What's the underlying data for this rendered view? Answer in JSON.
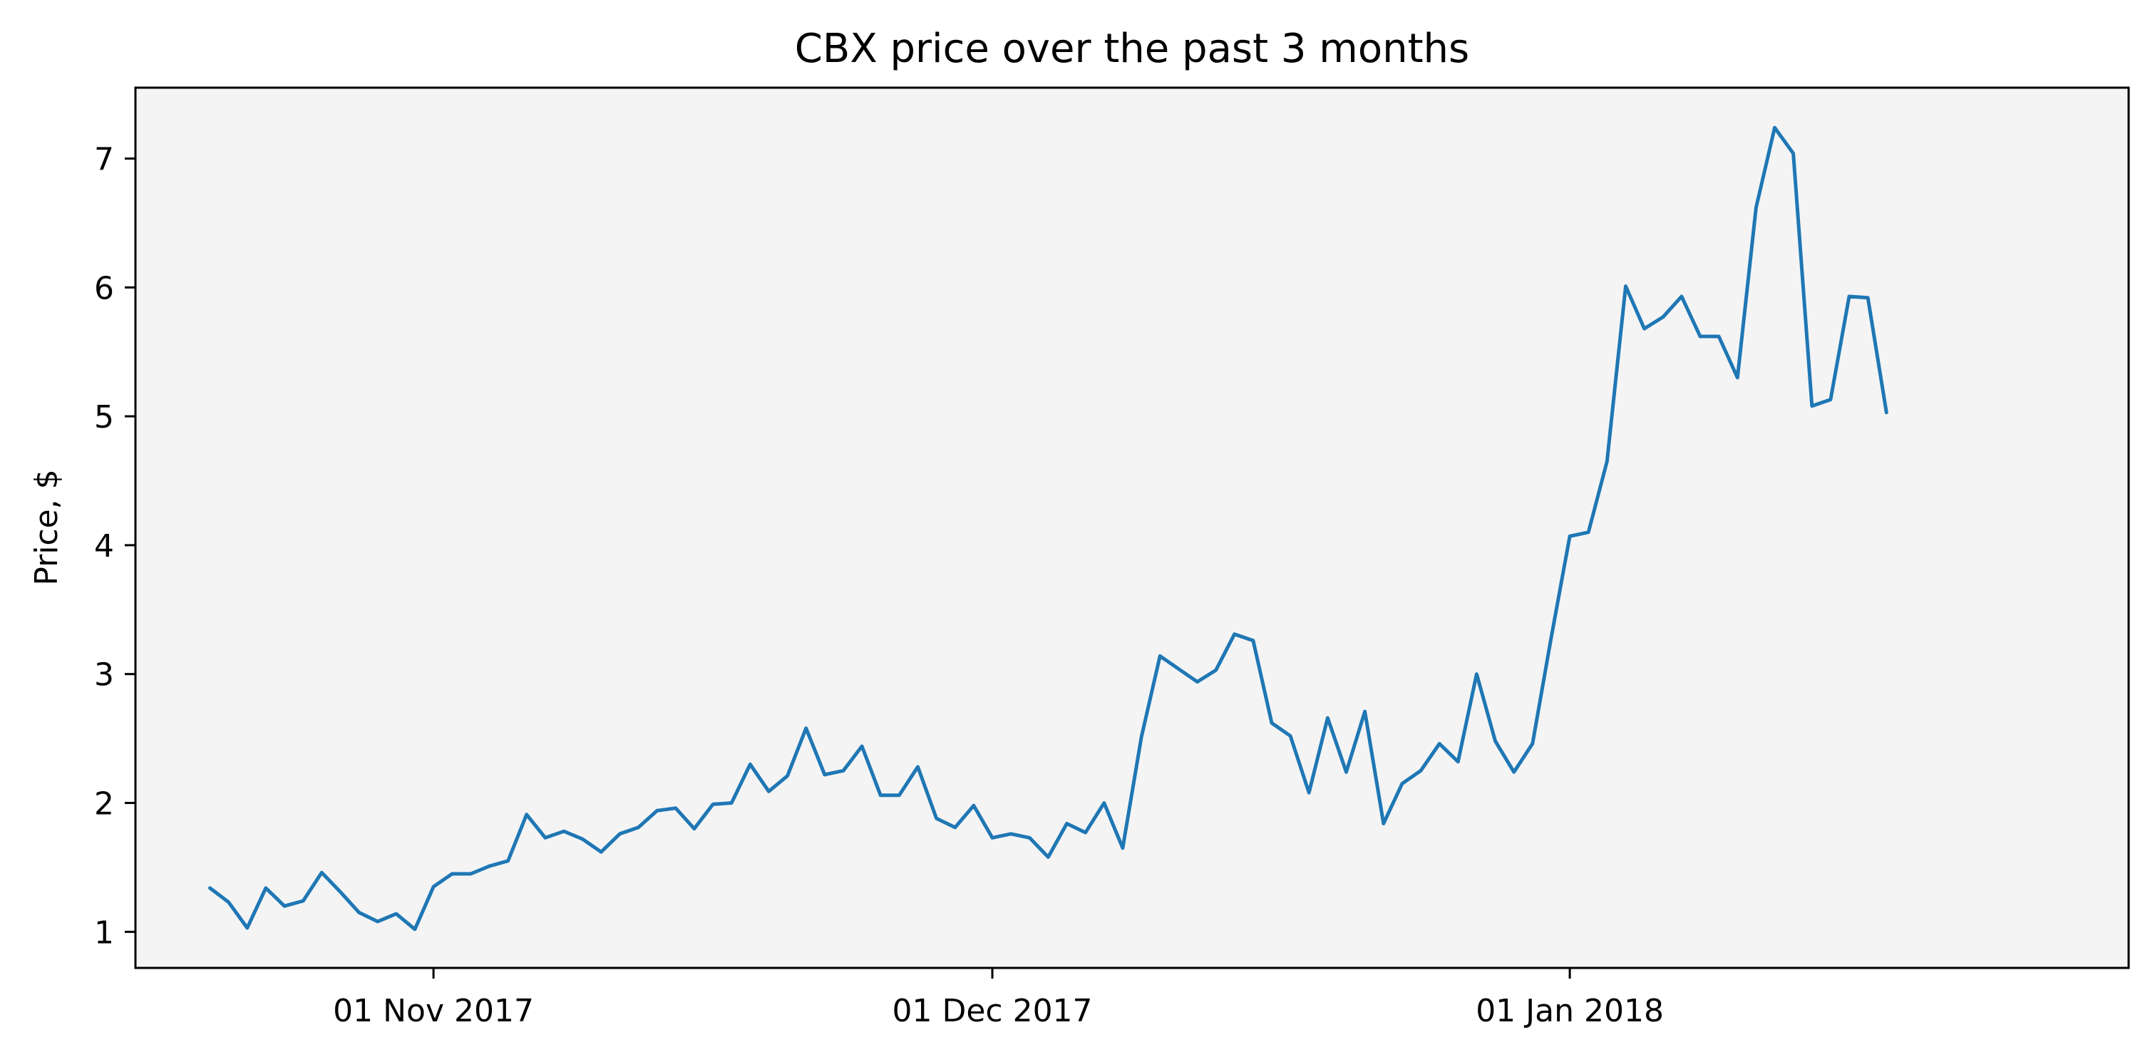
{
  "chart_data": {
    "type": "line",
    "title": "CBX price over the past 3 months",
    "xlabel": "",
    "ylabel": "Price, $",
    "ylim": [
      0.72,
      7.55
    ],
    "xlim": [
      "2017-10-16",
      "2018-01-31"
    ],
    "grid": false,
    "background_color": "#f4f4f5",
    "y_ticks": [
      1,
      2,
      3,
      4,
      5,
      6,
      7
    ],
    "x_ticks": [
      {
        "date": "2017-11-01",
        "label": "01 Nov 2017"
      },
      {
        "date": "2017-12-01",
        "label": "01 Dec 2017"
      },
      {
        "date": "2018-01-01",
        "label": "01 Jan 2018"
      }
    ],
    "series": [
      {
        "color": "#1f77b4",
        "start_date": "2017-10-20",
        "interval_days": 1,
        "values": [
          1.34,
          1.23,
          1.03,
          1.34,
          1.2,
          1.24,
          1.46,
          1.31,
          1.15,
          1.08,
          1.14,
          1.02,
          1.35,
          1.45,
          1.45,
          1.51,
          1.55,
          1.91,
          1.73,
          1.78,
          1.72,
          1.62,
          1.76,
          1.81,
          1.94,
          1.96,
          1.8,
          1.99,
          2.0,
          2.3,
          2.09,
          2.21,
          2.58,
          2.22,
          2.25,
          2.44,
          2.06,
          2.06,
          2.28,
          1.88,
          1.81,
          1.98,
          1.73,
          1.76,
          1.73,
          1.58,
          1.84,
          1.77,
          2.0,
          1.65,
          2.51,
          3.14,
          3.04,
          2.94,
          3.03,
          3.31,
          3.26,
          2.62,
          2.52,
          2.08,
          2.66,
          2.24,
          2.71,
          1.84,
          2.15,
          2.25,
          2.46,
          2.32,
          3.0,
          2.48,
          2.24,
          2.46,
          3.28,
          4.07,
          4.1,
          4.65,
          6.01,
          5.68,
          5.77,
          5.93,
          5.62,
          5.62,
          5.3,
          6.62,
          7.24,
          7.04,
          5.08,
          5.13,
          5.93,
          5.92,
          5.03
        ]
      }
    ]
  }
}
